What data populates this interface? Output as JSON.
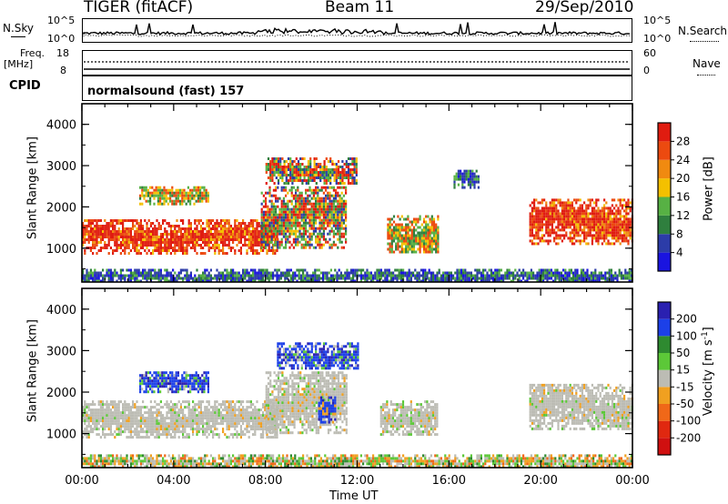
{
  "header": {
    "title": "TIGER (fitACF)",
    "beam": "Beam 11",
    "date": "29/Sep/2010"
  },
  "nsky_panel": {
    "left_label": "N.Sky",
    "right_label": "N.Search",
    "left_ticks": [
      "10^5",
      "10^0"
    ],
    "right_ticks": [
      "10^5",
      "10^0"
    ]
  },
  "freq_panel": {
    "left_label_top": "Freq.",
    "left_label_unit": "[MHz]",
    "left_ticks": [
      "18",
      "8"
    ],
    "right_label": "Nave",
    "right_ticks": [
      "60",
      "0"
    ]
  },
  "cpid_panel": {
    "label": "CPID",
    "text": "normalsound (fast) 157"
  },
  "colors": {
    "power": [
      "#1a14e0",
      "#2c3ca8",
      "#2f7f3e",
      "#57b144",
      "#f4c000",
      "#f08a10",
      "#ec4a10",
      "#e01c10"
    ],
    "velocity": [
      "#2a20b0",
      "#1c40e8",
      "#2e8a30",
      "#5cc838",
      "#bcbcb4",
      "#f0a020",
      "#f06818",
      "#e02810",
      "#d01010"
    ]
  },
  "chart_data": [
    {
      "type": "heatmap",
      "name": "power",
      "ylabel": "Slant Range [km]",
      "xlabel": "",
      "ylim": [
        180,
        4500
      ],
      "yticks": [
        "4000",
        "3000",
        "2000",
        "1000"
      ],
      "xlim_hours": [
        0,
        24
      ],
      "colorbar": {
        "label": "Power [dB]",
        "ticks": [
          "28",
          "24",
          "20",
          "16",
          "12",
          "8",
          "4"
        ],
        "range": [
          0,
          32
        ]
      },
      "echo_regions": [
        {
          "t_start": 0.0,
          "t_end": 8.5,
          "r_low": 900,
          "r_high": 1700,
          "level": "high"
        },
        {
          "t_start": 7.8,
          "t_end": 11.5,
          "r_low": 1000,
          "r_high": 2500,
          "level": "mixed"
        },
        {
          "t_start": 2.5,
          "t_end": 5.5,
          "r_low": 2100,
          "r_high": 2500,
          "level": "medium"
        },
        {
          "t_start": 8.0,
          "t_end": 12.0,
          "r_low": 2600,
          "r_high": 3200,
          "level": "mixed"
        },
        {
          "t_start": 13.3,
          "t_end": 15.5,
          "r_low": 900,
          "r_high": 1800,
          "level": "medium"
        },
        {
          "t_start": 16.2,
          "t_end": 17.3,
          "r_low": 2500,
          "r_high": 2900,
          "level": "low"
        },
        {
          "t_start": 19.5,
          "t_end": 24.0,
          "r_low": 1100,
          "r_high": 2200,
          "level": "high"
        },
        {
          "t_start": 0.0,
          "t_end": 24.0,
          "r_low": 180,
          "r_high": 500,
          "level": "low"
        }
      ]
    },
    {
      "type": "heatmap",
      "name": "velocity",
      "ylabel": "Slant Range [km]",
      "xlabel": "Time UT",
      "ylim": [
        180,
        4500
      ],
      "yticks": [
        "4000",
        "3000",
        "2000",
        "1000"
      ],
      "xticks": [
        "00:00",
        "04:00",
        "08:00",
        "12:00",
        "16:00",
        "20:00",
        "00:00"
      ],
      "xlim_hours": [
        0,
        24
      ],
      "colorbar": {
        "label": "Velocity [m s^-1]",
        "ticks": [
          "200",
          "100",
          "50",
          "15",
          "-15",
          "-50",
          "-100",
          "-200"
        ],
        "range": [
          -250,
          250
        ]
      },
      "echo_regions": [
        {
          "t_start": 0.0,
          "t_end": 8.5,
          "r_low": 900,
          "r_high": 1800,
          "level": "near-zero"
        },
        {
          "t_start": 8.0,
          "t_end": 11.5,
          "r_low": 1000,
          "r_high": 2500,
          "level": "near-zero"
        },
        {
          "t_start": 2.5,
          "t_end": 5.5,
          "r_low": 2000,
          "r_high": 2500,
          "level": "positive"
        },
        {
          "t_start": 8.5,
          "t_end": 12.0,
          "r_low": 2600,
          "r_high": 3200,
          "level": "positive"
        },
        {
          "t_start": 10.3,
          "t_end": 11.0,
          "r_low": 1300,
          "r_high": 1900,
          "level": "positive-high"
        },
        {
          "t_start": 13.0,
          "t_end": 15.5,
          "r_low": 1000,
          "r_high": 1800,
          "level": "near-zero"
        },
        {
          "t_start": 19.5,
          "t_end": 24.0,
          "r_low": 1100,
          "r_high": 2200,
          "level": "near-zero"
        },
        {
          "t_start": 0.0,
          "t_end": 24.0,
          "r_low": 180,
          "r_high": 500,
          "level": "mixed"
        }
      ]
    }
  ]
}
